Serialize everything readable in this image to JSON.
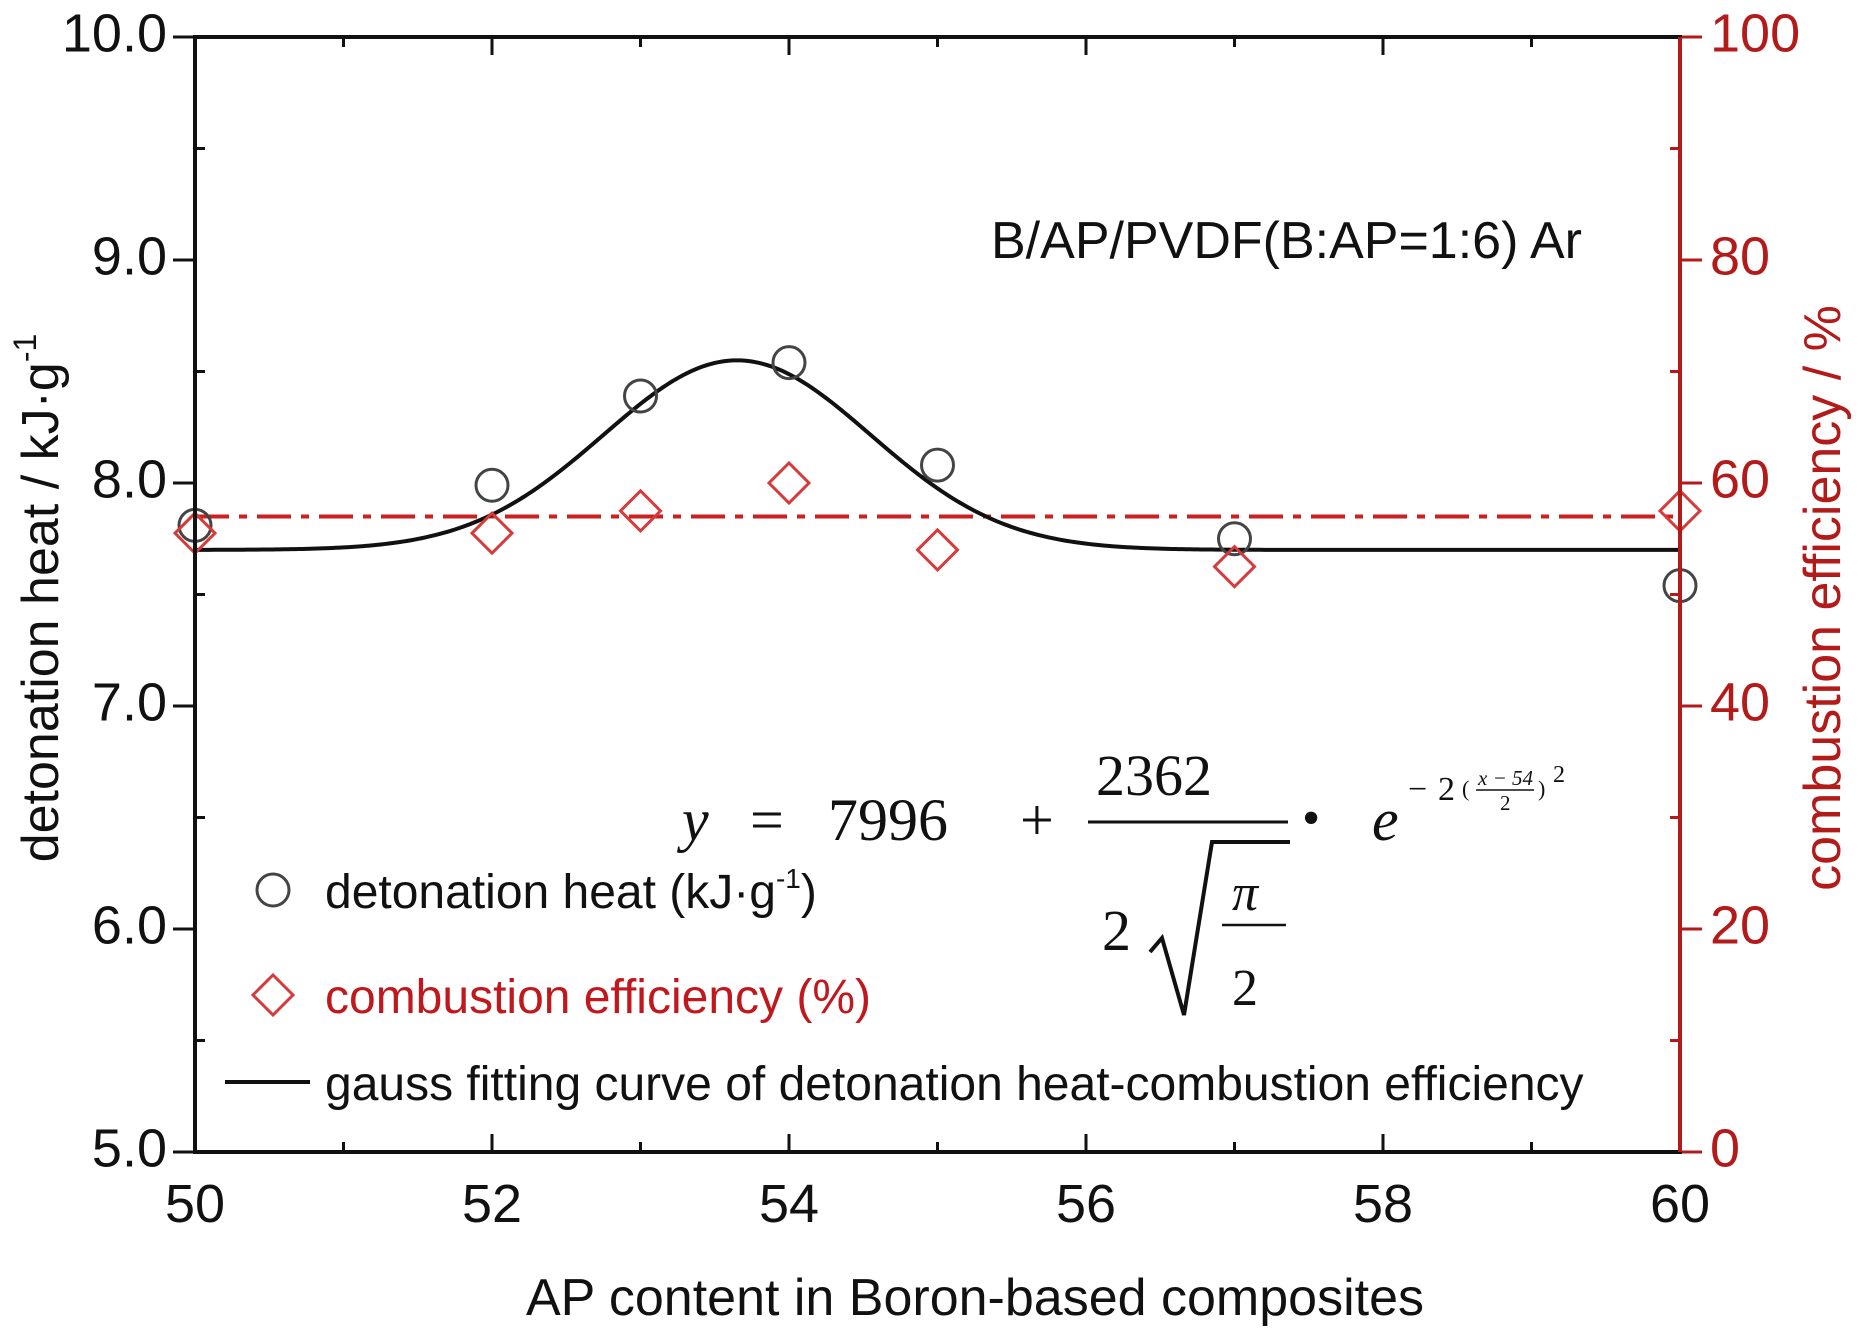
{
  "chart_data": {
    "type": "scatter",
    "annotation": "B/AP/PVDF(B:AP=1:6) Ar",
    "xlabel": "AP content in Boron-based composites",
    "ylabel_left_main": "detonation heat / kJ·g",
    "ylabel_left_sup": "-1",
    "ylabel_right": "combustion efficiency / %",
    "xlim": [
      50,
      60
    ],
    "ylim_left": [
      5.0,
      10.0
    ],
    "ylim_right": [
      0,
      100
    ],
    "x_ticks": [
      "50",
      "52",
      "54",
      "56",
      "58",
      "60"
    ],
    "y_left_ticks": [
      "5.0",
      "6.0",
      "7.0",
      "8.0",
      "9.0",
      "10.0"
    ],
    "y_right_ticks": [
      "0",
      "20",
      "40",
      "60",
      "80",
      "100"
    ],
    "series": [
      {
        "name": "detonation heat (kJ·g",
        "name_sup": "-1",
        "name_end": ")",
        "axis": "left",
        "marker": "circle",
        "color": "#444444",
        "x": [
          50,
          52,
          53,
          54,
          55,
          57,
          60
        ],
        "y": [
          7.81,
          7.99,
          8.39,
          8.54,
          8.08,
          7.75,
          7.54
        ]
      },
      {
        "name": "combustion efficiency (%)",
        "axis": "right",
        "marker": "diamond",
        "color": "#d83a3a",
        "x": [
          50,
          52,
          53,
          54,
          55,
          57,
          60
        ],
        "y": [
          55.5,
          55.5,
          57.5,
          60.0,
          54.0,
          52.5,
          57.5
        ]
      },
      {
        "name": "gauss fitting curve of detonation heat-combustion efficiency",
        "axis": "left",
        "type": "line",
        "color": "#111111",
        "baseline": 7.7,
        "amplitude": 0.85,
        "center": 53.65,
        "sigma": 0.9
      }
    ],
    "reference_line": {
      "axis": "right",
      "value": 57.0,
      "color": "#cc1f1f",
      "style": "dash-dot"
    },
    "equation": {
      "lhs": "y",
      "eq": "=",
      "const": "7996",
      "plus": "+",
      "numerator": "2362",
      "den_coef": "2",
      "sqrt_num": "π",
      "sqrt_den": "2",
      "dot": "•",
      "e": "e",
      "exp_neg": "−",
      "exp_two": "2",
      "exp_frac_num": "x − 54",
      "exp_frac_den": "2",
      "exp_power": "2"
    },
    "colors": {
      "axis_left": "#111111",
      "axis_right": "#b31b1b",
      "legend_red": "#c0181d"
    }
  }
}
